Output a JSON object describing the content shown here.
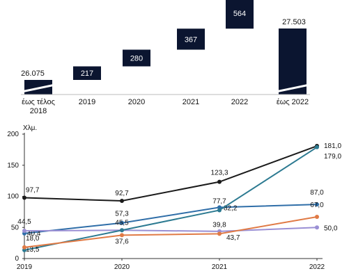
{
  "chart_data": [
    {
      "type": "bar",
      "subtype": "waterfall",
      "categories": [
        "έως τέλος 2018",
        "2019",
        "2020",
        "2021",
        "2022",
        "έως 2022"
      ],
      "values": [
        26075,
        217,
        280,
        367,
        564,
        27503
      ],
      "value_labels": [
        "26.075",
        "217",
        "280",
        "367",
        "564",
        "27.503"
      ],
      "category_lines": [
        [
          "έως τέλος",
          "2018"
        ],
        [
          "2019"
        ],
        [
          "2020"
        ],
        [
          "2021"
        ],
        [
          "2022"
        ],
        [
          "έως 2022"
        ]
      ],
      "color": "#0b1530",
      "axis_break": true
    },
    {
      "type": "line",
      "ylabel": "Χλμ.",
      "x": [
        "2019",
        "2020",
        "2021",
        "2022"
      ],
      "ylim": [
        0,
        200
      ],
      "yticks": [
        "0",
        "50",
        "100",
        "150",
        "200"
      ],
      "grid": false,
      "series": [
        {
          "color": "#1a1a1a",
          "values": [
            97.7,
            92.7,
            123.3,
            181.0
          ],
          "labels": [
            "97,7",
            "92,7",
            "123,3",
            "181,0"
          ]
        },
        {
          "color": "#2f6ea8",
          "values": [
            40.4,
            57.3,
            82.2,
            87.0
          ],
          "labels": [
            "40,4",
            "57,3",
            "82,2",
            "87,0"
          ]
        },
        {
          "color": "#9a8fd4",
          "values": [
            44.5,
            45.5,
            43.7,
            50.0
          ],
          "labels": [
            "44,5",
            "45,5",
            "43,7",
            "50,0"
          ]
        },
        {
          "color": "#2c7a91",
          "values": [
            13.5,
            45.5,
            77.7,
            179.0
          ],
          "labels": [
            "13,5",
            "",
            "77,7",
            "179,0"
          ]
        },
        {
          "color": "#e07a45",
          "values": [
            18.0,
            37.6,
            39.8,
            67.0
          ],
          "labels": [
            "18,0",
            "37,6",
            "39,8",
            "67,0"
          ]
        }
      ]
    }
  ]
}
